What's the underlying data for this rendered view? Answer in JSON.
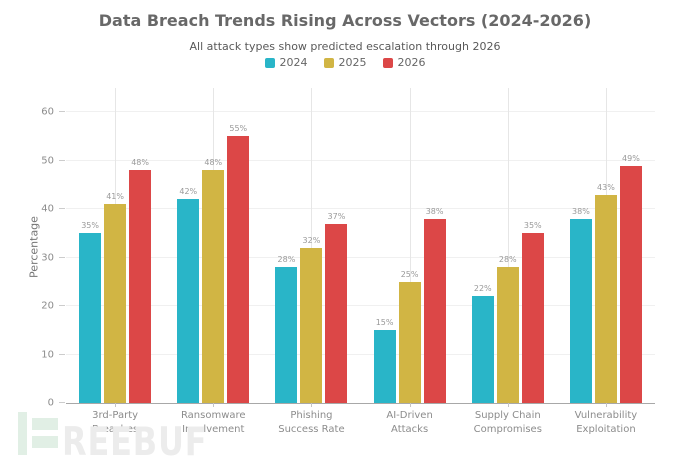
{
  "title": "Data Breach Trends Rising Across Vectors (2024-2026)",
  "subtitle": "All attack types show predicted escalation through 2026",
  "watermark": {
    "text": "REEBUF",
    "logo_color": "#e1efe5",
    "text_color": "#ececec"
  },
  "chart_data": {
    "type": "bar",
    "title": "Data Breach Trends Rising Across Vectors (2024-2026)",
    "subtitle": "All attack types show predicted escalation through 2026",
    "categories": [
      "3rd-Party\nBreaches",
      "Ransomware\nInvolvement",
      "Phishing\nSuccess Rate",
      "AI-Driven\nAttacks",
      "Supply Chain\nCompromises",
      "Vulnerability\nExploitation"
    ],
    "series": [
      {
        "name": "2024",
        "color": "#29b5c8",
        "values": [
          35,
          42,
          28,
          15,
          22,
          38
        ]
      },
      {
        "name": "2025",
        "color": "#d1b544",
        "values": [
          41,
          48,
          32,
          25,
          28,
          43
        ]
      },
      {
        "name": "2026",
        "color": "#dc4747",
        "values": [
          48,
          55,
          37,
          38,
          35,
          49
        ]
      }
    ],
    "xlabel": "",
    "ylabel": "Percentage",
    "ylim": [
      0,
      65
    ],
    "yticks": [
      0,
      10,
      20,
      30,
      40,
      50,
      60
    ],
    "value_suffix": "%",
    "grid": true,
    "legend_position": "top-center"
  }
}
